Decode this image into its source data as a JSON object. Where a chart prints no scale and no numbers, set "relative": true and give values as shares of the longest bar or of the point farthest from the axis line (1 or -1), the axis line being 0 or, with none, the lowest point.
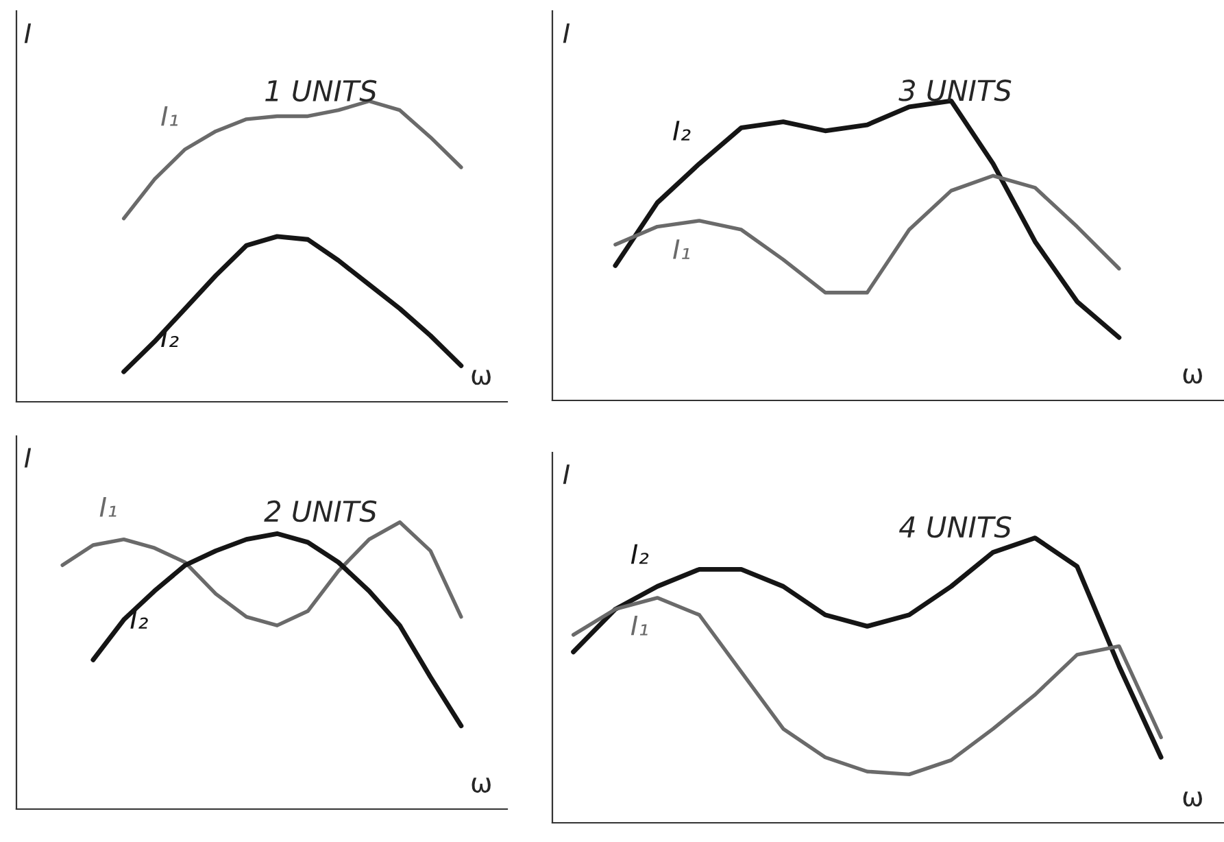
{
  "chart_data": [
    {
      "type": "line",
      "title": "1 UNITS",
      "ylabel": "I",
      "xlabel": "ω",
      "relative": true,
      "legend": false,
      "tick_labels": false,
      "marker": "none",
      "line_style": "solid",
      "categories": [
        null,
        null,
        null,
        null,
        null,
        null,
        null,
        null,
        null,
        null,
        null,
        null,
        null,
        null,
        null,
        null
      ],
      "series": [
        {
          "name": "I₁",
          "color": "#6a6a6a",
          "values": [
            null,
            null,
            null,
            0.61,
            0.74,
            0.84,
            0.9,
            0.94,
            0.95,
            0.95,
            0.97,
            1.0,
            0.97,
            0.88,
            0.78,
            null
          ]
        },
        {
          "name": "I₂",
          "color": "#151515",
          "values": [
            null,
            null,
            null,
            0.1,
            0.2,
            0.31,
            0.42,
            0.52,
            0.55,
            0.54,
            0.47,
            0.39,
            0.31,
            0.22,
            0.12,
            null
          ]
        }
      ]
    },
    {
      "type": "line",
      "title": "3 UNITS",
      "ylabel": "I",
      "xlabel": "ω",
      "relative": true,
      "legend": false,
      "tick_labels": false,
      "marker": "none",
      "line_style": "solid",
      "categories": [
        null,
        null,
        null,
        null,
        null,
        null,
        null,
        null,
        null,
        null,
        null,
        null,
        null,
        null,
        null,
        null
      ],
      "series": [
        {
          "name": "I₂",
          "color": "#151515",
          "values": [
            null,
            0.45,
            0.66,
            0.79,
            0.91,
            0.93,
            0.9,
            0.92,
            0.98,
            1.0,
            0.79,
            0.53,
            0.33,
            0.21,
            null,
            null
          ]
        },
        {
          "name": "I₁",
          "color": "#6a6a6a",
          "values": [
            null,
            0.52,
            0.58,
            0.6,
            0.57,
            0.47,
            0.36,
            0.36,
            0.57,
            0.7,
            0.75,
            0.71,
            0.58,
            0.44,
            null,
            null
          ]
        }
      ]
    },
    {
      "type": "line",
      "title": "2 UNITS",
      "ylabel": "I",
      "xlabel": "ω",
      "relative": true,
      "legend": false,
      "tick_labels": false,
      "marker": "none",
      "line_style": "solid",
      "categories": [
        null,
        null,
        null,
        null,
        null,
        null,
        null,
        null,
        null,
        null,
        null,
        null,
        null,
        null,
        null,
        null
      ],
      "series": [
        {
          "name": "I₁",
          "color": "#6a6a6a",
          "values": [
            null,
            0.85,
            0.92,
            0.94,
            0.91,
            0.86,
            0.75,
            0.67,
            0.64,
            0.69,
            0.83,
            0.94,
            1.0,
            0.9,
            0.67,
            null
          ]
        },
        {
          "name": "I₂",
          "color": "#151515",
          "values": [
            null,
            null,
            0.52,
            0.66,
            0.76,
            0.85,
            0.9,
            0.94,
            0.96,
            0.93,
            0.86,
            0.76,
            0.64,
            0.46,
            0.29,
            null
          ]
        }
      ]
    },
    {
      "type": "line",
      "title": "4 UNITS",
      "ylabel": "I",
      "xlabel": "ω",
      "relative": true,
      "legend": false,
      "tick_labels": false,
      "marker": "none",
      "line_style": "solid",
      "categories": [
        null,
        null,
        null,
        null,
        null,
        null,
        null,
        null,
        null,
        null,
        null,
        null,
        null,
        null,
        null,
        null
      ],
      "series": [
        {
          "name": "I₂",
          "color": "#151515",
          "values": [
            0.6,
            0.75,
            0.83,
            0.89,
            0.89,
            0.83,
            0.73,
            0.69,
            0.73,
            0.83,
            0.95,
            1.0,
            0.9,
            0.55,
            0.23,
            null
          ]
        },
        {
          "name": "I₁",
          "color": "#6a6a6a",
          "values": [
            0.66,
            0.75,
            0.79,
            0.73,
            0.53,
            0.33,
            0.23,
            0.18,
            0.17,
            0.22,
            0.33,
            0.45,
            0.59,
            0.62,
            0.3,
            null
          ]
        }
      ]
    }
  ]
}
